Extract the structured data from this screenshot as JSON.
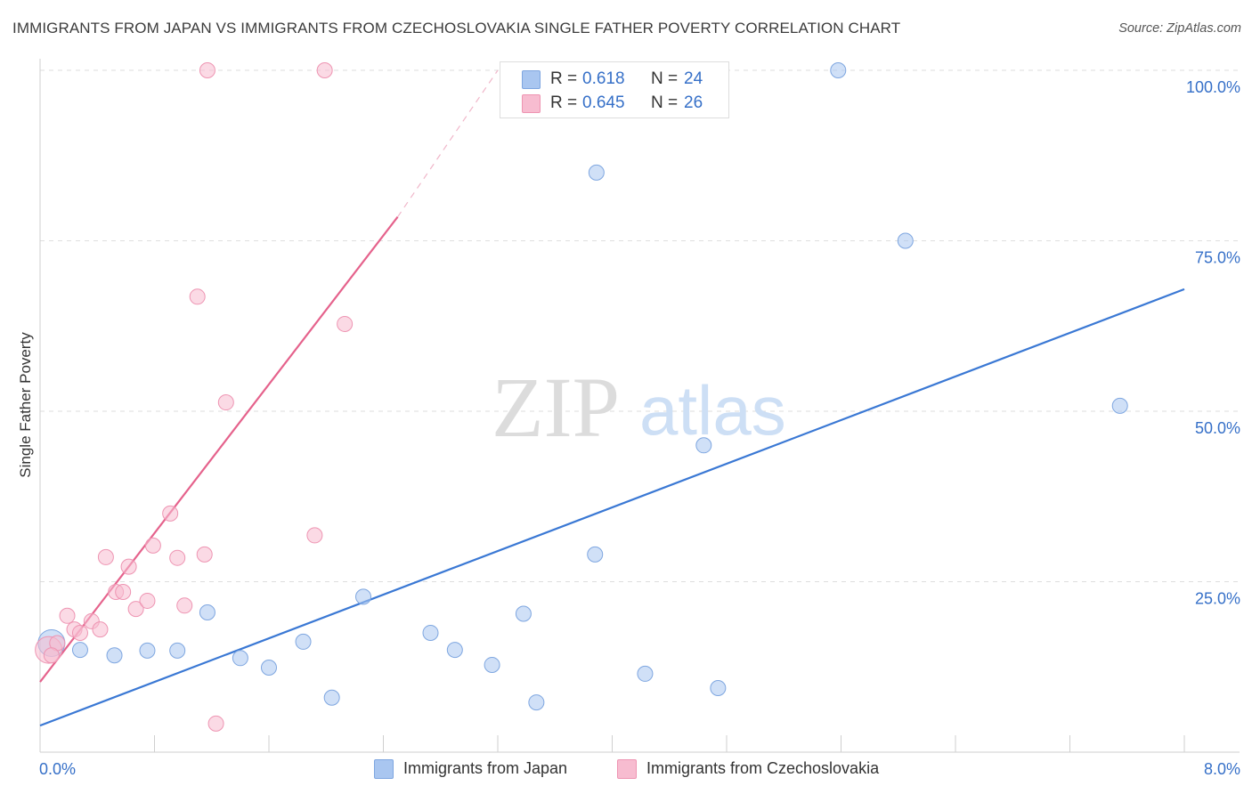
{
  "title": "IMMIGRANTS FROM JAPAN VS IMMIGRANTS FROM CZECHOSLOVAKIA SINGLE FATHER POVERTY CORRELATION CHART",
  "source": "Source: ZipAtlas.com",
  "watermark": {
    "zip": "ZIP",
    "atlas": "atlas"
  },
  "legend": {
    "japan": {
      "r_label": "R =",
      "r_value": "0.618",
      "n_label": "N =",
      "n_value": "24",
      "color": "#a9c6f0",
      "border": "#7ea6e0"
    },
    "czech": {
      "r_label": "R =",
      "r_value": "0.645",
      "n_label": "N =",
      "n_value": "26",
      "color": "#f7bcd0",
      "border": "#ee94b2"
    }
  },
  "bottom_legend": {
    "japan": "Immigrants from Japan",
    "czech": "Immigrants from Czechoslovakia"
  },
  "chart_data": {
    "type": "scatter",
    "title": "IMMIGRANTS FROM JAPAN VS IMMIGRANTS FROM CZECHOSLOVAKIA SINGLE FATHER POVERTY CORRELATION CHART",
    "xlabel": "",
    "ylabel": "Single Father Poverty",
    "xlim": [
      0,
      8
    ],
    "ylim": [
      0,
      105
    ],
    "x_tick_labels": [
      "0.0%",
      "8.0%"
    ],
    "y_ticks": [
      25,
      50,
      75,
      100
    ],
    "y_tick_labels": [
      "25.0%",
      "50.0%",
      "75.0%",
      "100.0%"
    ],
    "grid": true,
    "series": [
      {
        "name": "Immigrants from Japan",
        "color": "#3a78d4",
        "fill": "#a9c6f0",
        "points": [
          {
            "x": 0.08,
            "y": 16.0,
            "size": "large"
          },
          {
            "x": 0.28,
            "y": 15.0
          },
          {
            "x": 0.52,
            "y": 14.2
          },
          {
            "x": 0.75,
            "y": 14.9
          },
          {
            "x": 0.96,
            "y": 14.9
          },
          {
            "x": 1.17,
            "y": 20.5
          },
          {
            "x": 1.4,
            "y": 13.8
          },
          {
            "x": 1.6,
            "y": 12.4
          },
          {
            "x": 1.84,
            "y": 16.2
          },
          {
            "x": 2.04,
            "y": 8.0
          },
          {
            "x": 2.26,
            "y": 22.8
          },
          {
            "x": 2.73,
            "y": 17.5
          },
          {
            "x": 2.9,
            "y": 15.0
          },
          {
            "x": 3.16,
            "y": 12.8
          },
          {
            "x": 3.38,
            "y": 20.3
          },
          {
            "x": 3.47,
            "y": 7.3
          },
          {
            "x": 3.88,
            "y": 29.0
          },
          {
            "x": 3.89,
            "y": 85.0
          },
          {
            "x": 4.23,
            "y": 11.5
          },
          {
            "x": 4.64,
            "y": 45.0
          },
          {
            "x": 4.74,
            "y": 9.4
          },
          {
            "x": 5.58,
            "y": 100.0
          },
          {
            "x": 6.05,
            "y": 75.0
          },
          {
            "x": 7.55,
            "y": 50.8
          }
        ],
        "trend": {
          "x0": 0.0,
          "y0": 3.9,
          "x1": 8.0,
          "y1": 67.9
        }
      },
      {
        "name": "Immigrants from Czechoslovakia",
        "color": "#e5628c",
        "fill": "#f7bcd0",
        "points": [
          {
            "x": 0.06,
            "y": 15.0,
            "size": "large"
          },
          {
            "x": 0.12,
            "y": 16.0
          },
          {
            "x": 0.19,
            "y": 20.0
          },
          {
            "x": 0.24,
            "y": 18.0
          },
          {
            "x": 0.28,
            "y": 17.5
          },
          {
            "x": 0.36,
            "y": 19.2
          },
          {
            "x": 0.42,
            "y": 18.0
          },
          {
            "x": 0.46,
            "y": 28.6
          },
          {
            "x": 0.53,
            "y": 23.5
          },
          {
            "x": 0.58,
            "y": 23.5
          },
          {
            "x": 0.62,
            "y": 27.2
          },
          {
            "x": 0.67,
            "y": 21.0
          },
          {
            "x": 0.75,
            "y": 22.2
          },
          {
            "x": 0.79,
            "y": 30.3
          },
          {
            "x": 0.91,
            "y": 35.0
          },
          {
            "x": 0.96,
            "y": 28.5
          },
          {
            "x": 1.01,
            "y": 21.5
          },
          {
            "x": 1.1,
            "y": 66.8
          },
          {
            "x": 1.15,
            "y": 29.0
          },
          {
            "x": 1.17,
            "y": 100.0
          },
          {
            "x": 1.23,
            "y": 4.2
          },
          {
            "x": 1.3,
            "y": 51.3
          },
          {
            "x": 1.99,
            "y": 100.0
          },
          {
            "x": 1.92,
            "y": 31.8
          },
          {
            "x": 2.13,
            "y": 62.8
          },
          {
            "x": 0.08,
            "y": 14.2
          }
        ],
        "trend": {
          "x0": 0.0,
          "y0": 10.3,
          "x1": 2.5,
          "y1": 78.5
        },
        "trend_dashed": {
          "x0": 2.5,
          "y0": 78.5,
          "x1": 3.2,
          "y1": 100.0
        }
      }
    ]
  }
}
